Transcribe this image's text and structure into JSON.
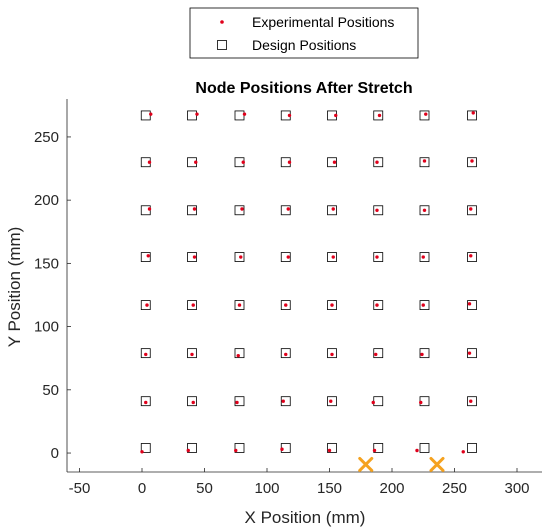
{
  "chart_data": {
    "type": "scatter",
    "title": "Node Positions After Stretch",
    "xlabel": "X Position (mm)",
    "ylabel": "Y Position (mm)",
    "xlim": [
      -60,
      320
    ],
    "ylim": [
      -15,
      280
    ],
    "xticks": [
      -50,
      0,
      50,
      100,
      150,
      200,
      250,
      300
    ],
    "yticks": [
      0,
      50,
      100,
      150,
      200,
      250
    ],
    "grid": false,
    "legend_position": "top-right",
    "colors": {
      "experimental": "#e0001b",
      "design": "#000000",
      "marker_x": "#f5a21f",
      "axes": "#262626"
    },
    "series": [
      {
        "name": "Experimental Positions",
        "marker": "dot",
        "x": [
          0,
          37,
          75,
          112,
          150,
          186,
          220,
          257,
          3,
          41,
          76,
          113,
          151,
          185,
          223,
          263,
          3,
          40,
          77,
          115,
          152,
          187,
          224,
          262,
          4,
          41,
          78,
          115,
          152,
          188,
          225,
          262,
          5,
          42,
          79,
          117,
          153,
          188,
          225,
          263,
          6,
          42,
          80,
          117,
          153,
          188,
          226,
          263,
          6,
          43,
          81,
          118,
          154,
          188,
          226,
          264,
          7,
          44,
          82,
          118,
          155,
          190,
          227,
          265
        ],
        "y": [
          1,
          2,
          2,
          3,
          2,
          2,
          2,
          1,
          40,
          40,
          40,
          41,
          41,
          40,
          40,
          41,
          78,
          78,
          77,
          78,
          78,
          78,
          78,
          79,
          117,
          117,
          117,
          117,
          117,
          117,
          117,
          118,
          156,
          155,
          155,
          155,
          155,
          155,
          155,
          156,
          193,
          193,
          193,
          193,
          193,
          192,
          192,
          193,
          230,
          230,
          230,
          230,
          230,
          230,
          231,
          231,
          268,
          268,
          268,
          267,
          267,
          267,
          268,
          269
        ]
      },
      {
        "name": "Design Positions",
        "marker": "square",
        "x": [
          3,
          40,
          78,
          115,
          152,
          189,
          226,
          264,
          3,
          40,
          78,
          115,
          152,
          189,
          226,
          264,
          3,
          40,
          78,
          115,
          152,
          189,
          226,
          264,
          3,
          40,
          78,
          115,
          152,
          189,
          226,
          264,
          3,
          40,
          78,
          115,
          152,
          189,
          226,
          264,
          3,
          40,
          78,
          115,
          152,
          189,
          226,
          264,
          3,
          40,
          78,
          115,
          152,
          189,
          226,
          264,
          3,
          40,
          78,
          115,
          152,
          189,
          226,
          264
        ],
        "y": [
          4,
          4,
          4,
          4,
          4,
          4,
          4,
          4,
          41,
          41,
          41,
          41,
          41,
          41,
          41,
          41,
          79,
          79,
          79,
          79,
          79,
          79,
          79,
          79,
          117,
          117,
          117,
          117,
          117,
          117,
          117,
          117,
          155,
          155,
          155,
          155,
          155,
          155,
          155,
          155,
          192,
          192,
          192,
          192,
          192,
          192,
          192,
          192,
          230,
          230,
          230,
          230,
          230,
          230,
          230,
          230,
          267,
          267,
          267,
          267,
          267,
          267,
          267,
          267
        ]
      },
      {
        "marker": "x",
        "x": [
          179,
          236
        ],
        "y": [
          -9,
          -9
        ]
      }
    ]
  }
}
